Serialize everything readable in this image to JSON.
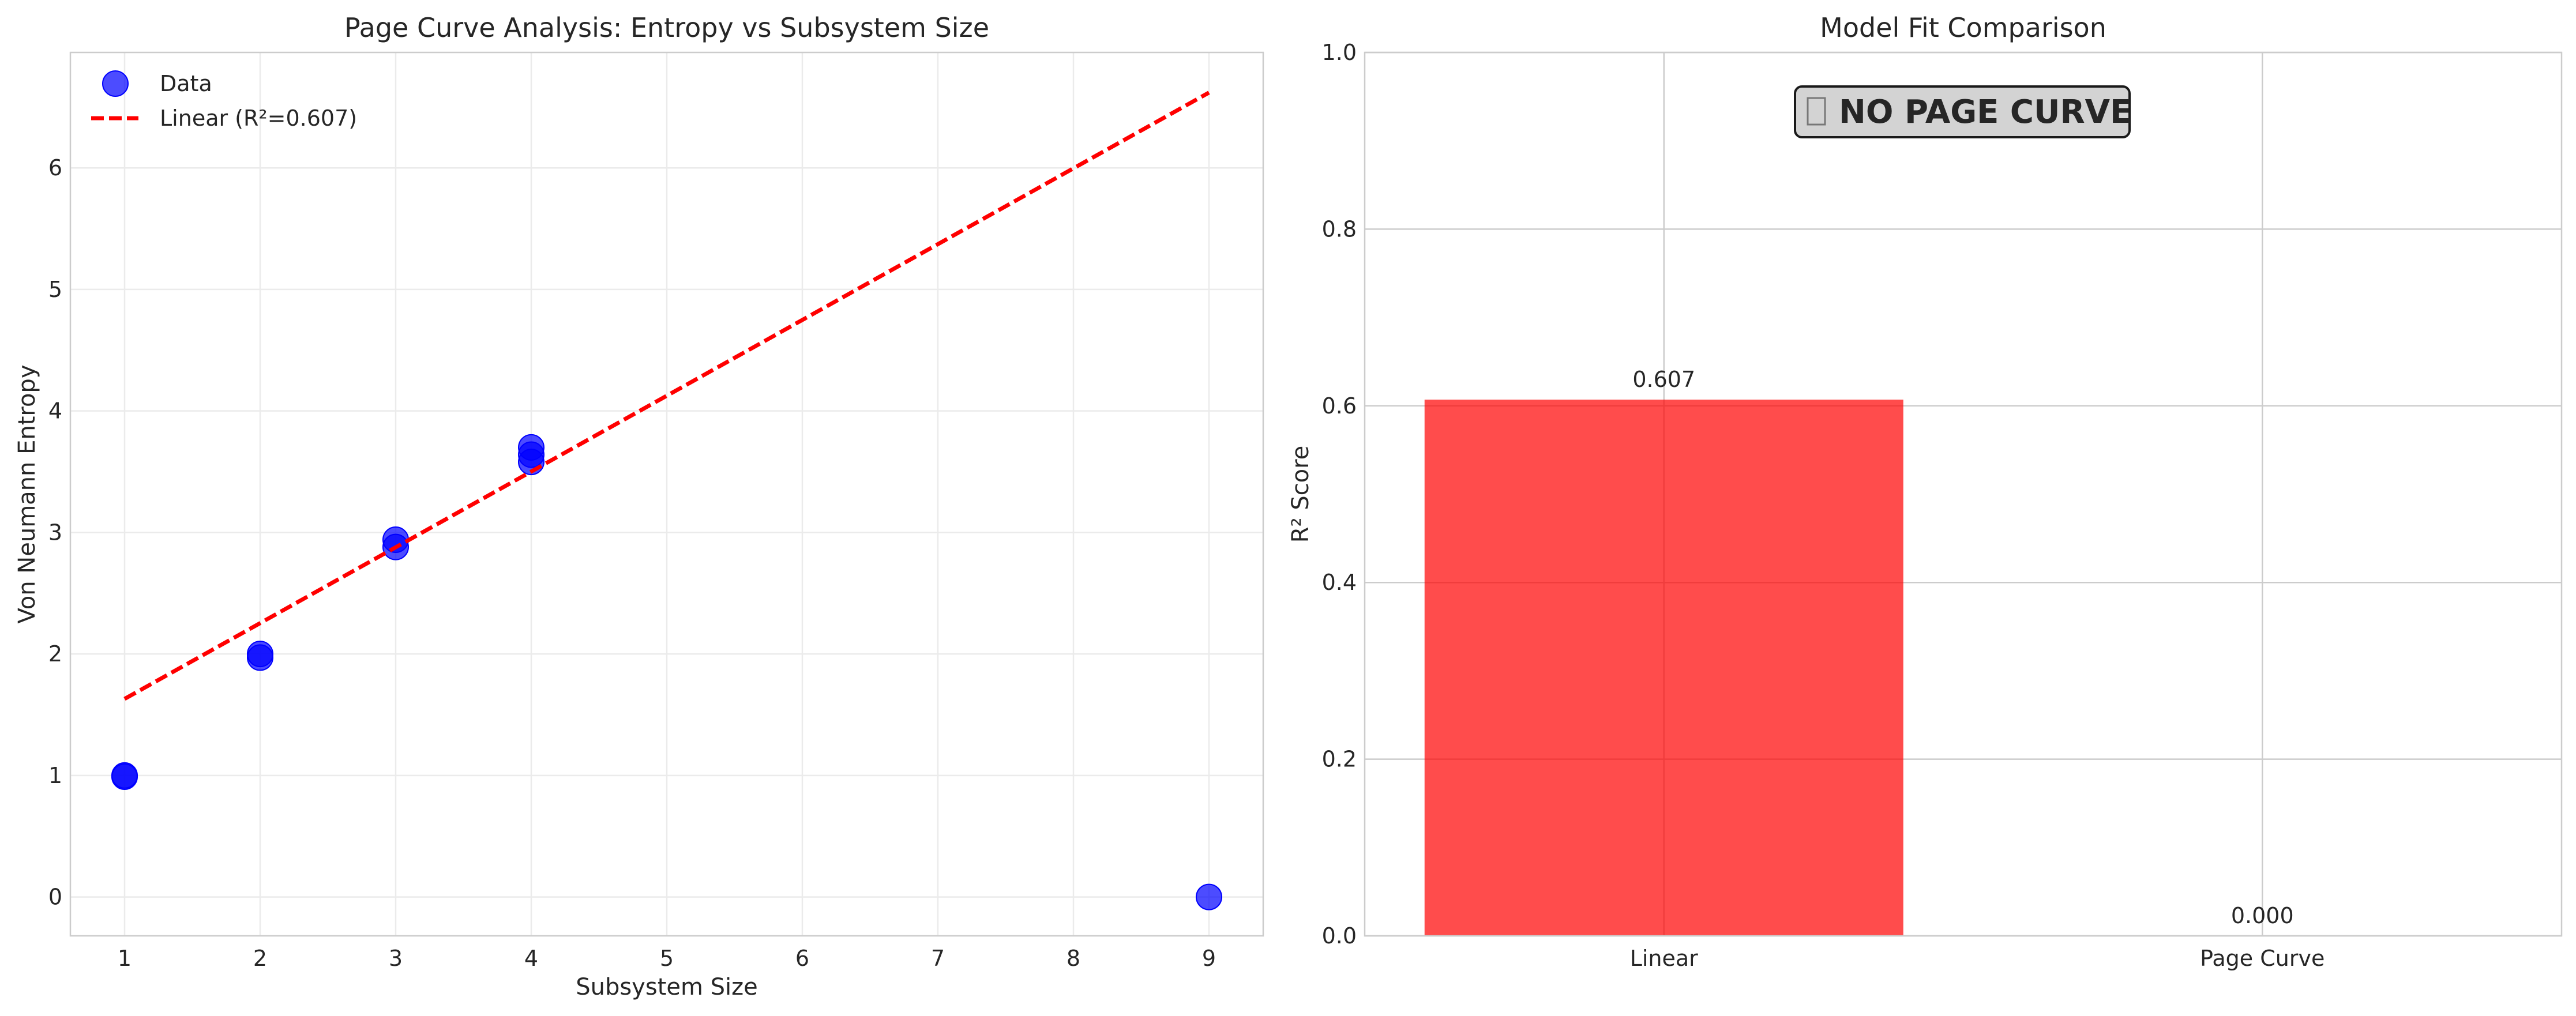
{
  "chart_data": [
    {
      "type": "scatter",
      "title": "Page Curve Analysis: Entropy vs Subsystem Size",
      "xlabel": "Subsystem Size",
      "ylabel": "Von Neumann Entropy",
      "xlim": [
        0.6,
        9.4
      ],
      "ylim": [
        -0.32,
        6.95
      ],
      "xticks": [
        1,
        2,
        3,
        4,
        5,
        6,
        7,
        8,
        9
      ],
      "yticks": [
        0,
        1,
        2,
        3,
        4,
        5,
        6
      ],
      "grid": true,
      "legend": "top-left",
      "series": [
        {
          "name": "Data",
          "type": "scatter",
          "color": "#0000ff",
          "points": [
            [
              1,
              1.0
            ],
            [
              1,
              0.99
            ],
            [
              2,
              2.0
            ],
            [
              2,
              1.97
            ],
            [
              3,
              2.94
            ],
            [
              3,
              2.88
            ],
            [
              4,
              3.7
            ],
            [
              4,
              3.64
            ],
            [
              4,
              3.58
            ],
            [
              9,
              0.0
            ]
          ]
        },
        {
          "name": "Linear (R²=0.607)",
          "type": "line",
          "style": "dashed",
          "color": "#ff0000",
          "points": [
            [
              1,
              1.63
            ],
            [
              9,
              6.62
            ]
          ]
        }
      ]
    },
    {
      "type": "bar",
      "title": "Model Fit Comparison",
      "xlabel": "",
      "ylabel": "R² Score",
      "categories": [
        "Linear",
        "Page Curve"
      ],
      "values": [
        0.607,
        0.0
      ],
      "value_labels": [
        "0.607",
        "0.000"
      ],
      "colors": [
        "#ff0000",
        "#0000ff"
      ],
      "ylim": [
        0,
        1.0
      ],
      "yticks": [
        "0.0",
        "0.2",
        "0.4",
        "0.6",
        "0.8",
        "1.0"
      ],
      "grid": true,
      "annotation": "NO PAGE CURVE",
      "annotation_icon": "missing-glyph-icon"
    }
  ]
}
